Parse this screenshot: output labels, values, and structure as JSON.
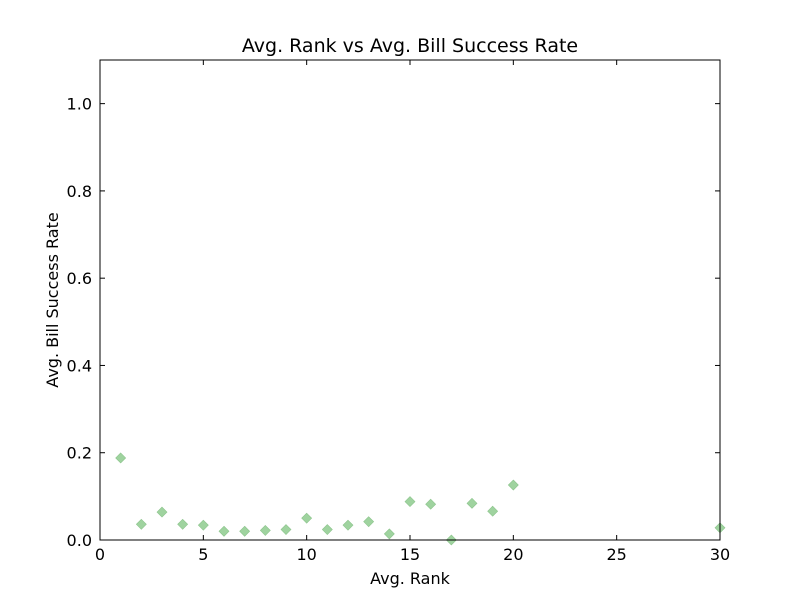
{
  "chart_data": {
    "type": "scatter",
    "title": "Avg. Rank vs Avg. Bill Success Rate",
    "xlabel": "Avg. Rank",
    "ylabel": "Avg. Bill Success Rate",
    "xlim": [
      0,
      30
    ],
    "ylim": [
      0,
      1.1
    ],
    "xticks": [
      0,
      5,
      10,
      15,
      20,
      25,
      30
    ],
    "xtick_labels": [
      "0",
      "5",
      "10",
      "15",
      "20",
      "25",
      "30"
    ],
    "yticks": [
      0.0,
      0.2,
      0.4,
      0.6,
      0.8,
      1.0
    ],
    "ytick_labels": [
      "0.0",
      "0.2",
      "0.4",
      "0.6",
      "0.8",
      "1.0"
    ],
    "grid": false,
    "marker_color": "#9fd39f",
    "marker_shape": "diamond",
    "series": [
      {
        "x": [
          1,
          2,
          3,
          4,
          5,
          6,
          7,
          8,
          9,
          10,
          11,
          12,
          13,
          14,
          15,
          16,
          17,
          18,
          19,
          20,
          30
        ],
        "y": [
          0.188,
          0.036,
          0.064,
          0.036,
          0.034,
          0.02,
          0.02,
          0.022,
          0.024,
          0.05,
          0.024,
          0.034,
          0.042,
          0.014,
          0.088,
          0.082,
          0.0,
          0.084,
          0.066,
          0.126,
          0.028
        ]
      }
    ]
  }
}
